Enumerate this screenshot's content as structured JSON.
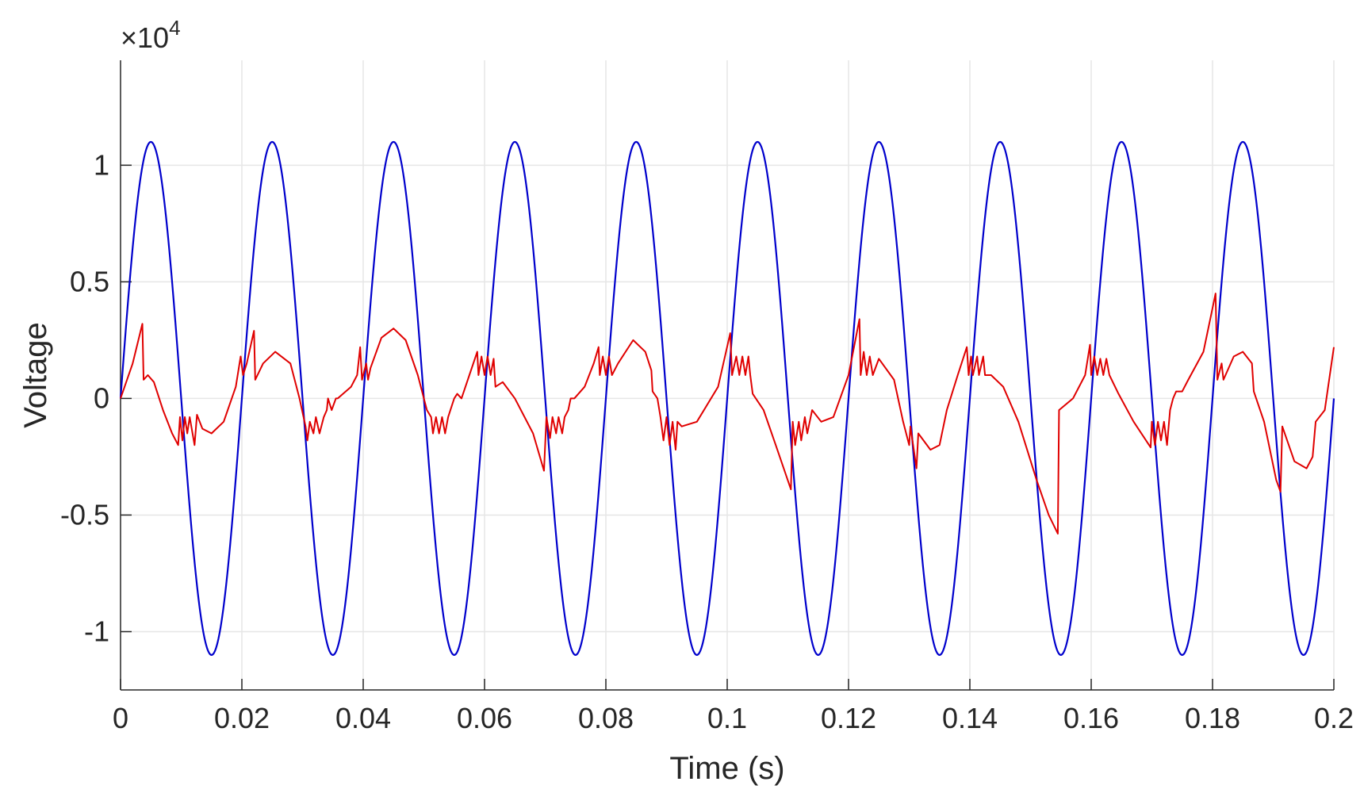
{
  "chart_data": {
    "type": "line",
    "xlabel": "Time (s)",
    "ylabel": "Voltage",
    "y_exponent_label": "×10",
    "y_exponent_power": "4",
    "xlim": [
      0,
      0.2
    ],
    "ylim": [
      -1.25,
      1.45
    ],
    "y_scale_factor": 10000,
    "grid": true,
    "x_ticks": [
      0,
      0.02,
      0.04,
      0.06,
      0.08,
      0.1,
      0.12,
      0.14,
      0.16,
      0.18,
      0.2
    ],
    "x_tick_labels": [
      "0",
      "0.02",
      "0.04",
      "0.06",
      "0.08",
      "0.1",
      "0.12",
      "0.14",
      "0.16",
      "0.18",
      "0.2"
    ],
    "y_ticks": [
      -1,
      -0.5,
      0,
      0.5,
      1
    ],
    "y_tick_labels": [
      "-1",
      "-0.5",
      "0",
      "0.5",
      "1"
    ],
    "series": [
      {
        "color": "#0000cc",
        "amplitude": 1.1,
        "frequency_hz": 50,
        "description_points": "sine"
      },
      {
        "color": "#e00000",
        "points": [
          [
            0,
            0
          ],
          [
            0.002,
            0.15
          ],
          [
            0.0036,
            0.32
          ],
          [
            0.0038,
            0.08
          ],
          [
            0.0045,
            0.1
          ],
          [
            0.0055,
            0.07
          ],
          [
            0.007,
            -0.05
          ],
          [
            0.0085,
            -0.15
          ],
          [
            0.0095,
            -0.2
          ],
          [
            0.0098,
            -0.08
          ],
          [
            0.0102,
            -0.18
          ],
          [
            0.0106,
            -0.08
          ],
          [
            0.011,
            -0.15
          ],
          [
            0.0114,
            -0.08
          ],
          [
            0.0122,
            -0.2
          ],
          [
            0.0126,
            -0.07
          ],
          [
            0.0135,
            -0.13
          ],
          [
            0.015,
            -0.15
          ],
          [
            0.017,
            -0.1
          ],
          [
            0.019,
            0.05
          ],
          [
            0.0198,
            0.18
          ],
          [
            0.0202,
            0.1
          ],
          [
            0.0208,
            0.15
          ],
          [
            0.022,
            0.29
          ],
          [
            0.0222,
            0.08
          ],
          [
            0.0235,
            0.15
          ],
          [
            0.0255,
            0.2
          ],
          [
            0.028,
            0.15
          ],
          [
            0.0295,
            0.0
          ],
          [
            0.0305,
            -0.12
          ],
          [
            0.0308,
            -0.18
          ],
          [
            0.0312,
            -0.1
          ],
          [
            0.0318,
            -0.15
          ],
          [
            0.0322,
            -0.08
          ],
          [
            0.0328,
            -0.15
          ],
          [
            0.0335,
            -0.08
          ],
          [
            0.034,
            -0.05
          ],
          [
            0.0342,
            0.0
          ],
          [
            0.0348,
            -0.05
          ],
          [
            0.0355,
            0.0
          ],
          [
            0.0358,
            0.0
          ],
          [
            0.038,
            0.05
          ],
          [
            0.039,
            0.1
          ],
          [
            0.0395,
            0.22
          ],
          [
            0.0398,
            0.08
          ],
          [
            0.0405,
            0.15
          ],
          [
            0.0408,
            0.08
          ],
          [
            0.0412,
            0.13
          ],
          [
            0.043,
            0.26
          ],
          [
            0.045,
            0.3
          ],
          [
            0.047,
            0.25
          ],
          [
            0.049,
            0.1
          ],
          [
            0.0505,
            -0.05
          ],
          [
            0.0512,
            -0.08
          ],
          [
            0.0515,
            -0.15
          ],
          [
            0.052,
            -0.08
          ],
          [
            0.0525,
            -0.15
          ],
          [
            0.053,
            -0.08
          ],
          [
            0.0535,
            -0.15
          ],
          [
            0.054,
            -0.08
          ],
          [
            0.055,
            0.0
          ],
          [
            0.0555,
            0.02
          ],
          [
            0.0562,
            0.0
          ],
          [
            0.0575,
            0.1
          ],
          [
            0.0588,
            0.2
          ],
          [
            0.059,
            0.1
          ],
          [
            0.0595,
            0.18
          ],
          [
            0.06,
            0.1
          ],
          [
            0.0605,
            0.18
          ],
          [
            0.061,
            0.1
          ],
          [
            0.0615,
            0.17
          ],
          [
            0.0618,
            0.05
          ],
          [
            0.063,
            0.07
          ],
          [
            0.065,
            0.0
          ],
          [
            0.068,
            -0.15
          ],
          [
            0.0698,
            -0.31
          ],
          [
            0.0702,
            -0.08
          ],
          [
            0.0708,
            -0.17
          ],
          [
            0.0712,
            -0.08
          ],
          [
            0.0718,
            -0.15
          ],
          [
            0.0722,
            -0.08
          ],
          [
            0.0728,
            -0.15
          ],
          [
            0.0732,
            -0.08
          ],
          [
            0.0738,
            -0.05
          ],
          [
            0.0742,
            0.0
          ],
          [
            0.0748,
            0.0
          ],
          [
            0.0765,
            0.05
          ],
          [
            0.078,
            0.15
          ],
          [
            0.0788,
            0.22
          ],
          [
            0.079,
            0.1
          ],
          [
            0.0795,
            0.18
          ],
          [
            0.08,
            0.1
          ],
          [
            0.0805,
            0.18
          ],
          [
            0.081,
            0.1
          ],
          [
            0.082,
            0.15
          ],
          [
            0.0845,
            0.25
          ],
          [
            0.0865,
            0.2
          ],
          [
            0.0875,
            0.12
          ],
          [
            0.0877,
            0.03
          ],
          [
            0.0885,
            0.0
          ],
          [
            0.089,
            -0.08
          ],
          [
            0.0895,
            -0.18
          ],
          [
            0.09,
            -0.08
          ],
          [
            0.0905,
            -0.2
          ],
          [
            0.091,
            -0.1
          ],
          [
            0.0915,
            -0.22
          ],
          [
            0.0918,
            -0.1
          ],
          [
            0.0925,
            -0.12
          ],
          [
            0.095,
            -0.1
          ],
          [
            0.0985,
            0.05
          ],
          [
            0.1005,
            0.28
          ],
          [
            0.1008,
            0.1
          ],
          [
            0.1015,
            0.18
          ],
          [
            0.102,
            0.1
          ],
          [
            0.1025,
            0.18
          ],
          [
            0.103,
            0.1
          ],
          [
            0.1035,
            0.18
          ],
          [
            0.1038,
            0.1
          ],
          [
            0.1042,
            0.02
          ],
          [
            0.106,
            -0.05
          ],
          [
            0.108,
            -0.2
          ],
          [
            0.1105,
            -0.39
          ],
          [
            0.1108,
            -0.1
          ],
          [
            0.1112,
            -0.2
          ],
          [
            0.1118,
            -0.1
          ],
          [
            0.1122,
            -0.18
          ],
          [
            0.1128,
            -0.08
          ],
          [
            0.1132,
            -0.15
          ],
          [
            0.114,
            -0.05
          ],
          [
            0.1155,
            -0.1
          ],
          [
            0.1175,
            -0.08
          ],
          [
            0.12,
            0.1
          ],
          [
            0.1218,
            0.34
          ],
          [
            0.122,
            0.1
          ],
          [
            0.1225,
            0.2
          ],
          [
            0.123,
            0.1
          ],
          [
            0.1235,
            0.18
          ],
          [
            0.124,
            0.1
          ],
          [
            0.125,
            0.17
          ],
          [
            0.1275,
            0.08
          ],
          [
            0.129,
            -0.1
          ],
          [
            0.13,
            -0.2
          ],
          [
            0.1302,
            -0.12
          ],
          [
            0.1312,
            -0.3
          ],
          [
            0.1315,
            -0.15
          ],
          [
            0.1335,
            -0.22
          ],
          [
            0.135,
            -0.2
          ],
          [
            0.1362,
            -0.05
          ],
          [
            0.1368,
            0.0
          ],
          [
            0.138,
            0.1
          ],
          [
            0.1395,
            0.22
          ],
          [
            0.1398,
            0.1
          ],
          [
            0.1402,
            0.18
          ],
          [
            0.1405,
            0.1
          ],
          [
            0.1412,
            0.18
          ],
          [
            0.1415,
            0.1
          ],
          [
            0.1422,
            0.18
          ],
          [
            0.1425,
            0.1
          ],
          [
            0.1435,
            0.1
          ],
          [
            0.1455,
            0.05
          ],
          [
            0.148,
            -0.1
          ],
          [
            0.151,
            -0.35
          ],
          [
            0.153,
            -0.5
          ],
          [
            0.1545,
            -0.58
          ],
          [
            0.1547,
            -0.05
          ],
          [
            0.157,
            0.0
          ],
          [
            0.159,
            0.1
          ],
          [
            0.1598,
            0.23
          ],
          [
            0.16,
            0.1
          ],
          [
            0.1605,
            0.18
          ],
          [
            0.161,
            0.1
          ],
          [
            0.1615,
            0.17
          ],
          [
            0.162,
            0.1
          ],
          [
            0.1625,
            0.17
          ],
          [
            0.163,
            0.1
          ],
          [
            0.1645,
            0.02
          ],
          [
            0.167,
            -0.1
          ],
          [
            0.1698,
            -0.21
          ],
          [
            0.17,
            -0.1
          ],
          [
            0.1705,
            -0.2
          ],
          [
            0.171,
            -0.1
          ],
          [
            0.1715,
            -0.18
          ],
          [
            0.172,
            -0.1
          ],
          [
            0.1725,
            -0.2
          ],
          [
            0.173,
            -0.05
          ],
          [
            0.1735,
            0.0
          ],
          [
            0.174,
            0.03
          ],
          [
            0.175,
            0.03
          ],
          [
            0.176,
            0.08
          ],
          [
            0.1785,
            0.2
          ],
          [
            0.1805,
            0.45
          ],
          [
            0.1808,
            0.08
          ],
          [
            0.1815,
            0.15
          ],
          [
            0.1818,
            0.08
          ],
          [
            0.1835,
            0.18
          ],
          [
            0.185,
            0.2
          ],
          [
            0.1865,
            0.15
          ],
          [
            0.1868,
            0.03
          ],
          [
            0.1885,
            -0.1
          ],
          [
            0.1905,
            -0.35
          ],
          [
            0.1912,
            -0.4
          ],
          [
            0.1915,
            -0.12
          ],
          [
            0.1935,
            -0.27
          ],
          [
            0.1955,
            -0.3
          ],
          [
            0.1965,
            -0.25
          ],
          [
            0.197,
            -0.1
          ],
          [
            0.1985,
            -0.05
          ],
          [
            0.2,
            0.22
          ]
        ]
      }
    ]
  }
}
